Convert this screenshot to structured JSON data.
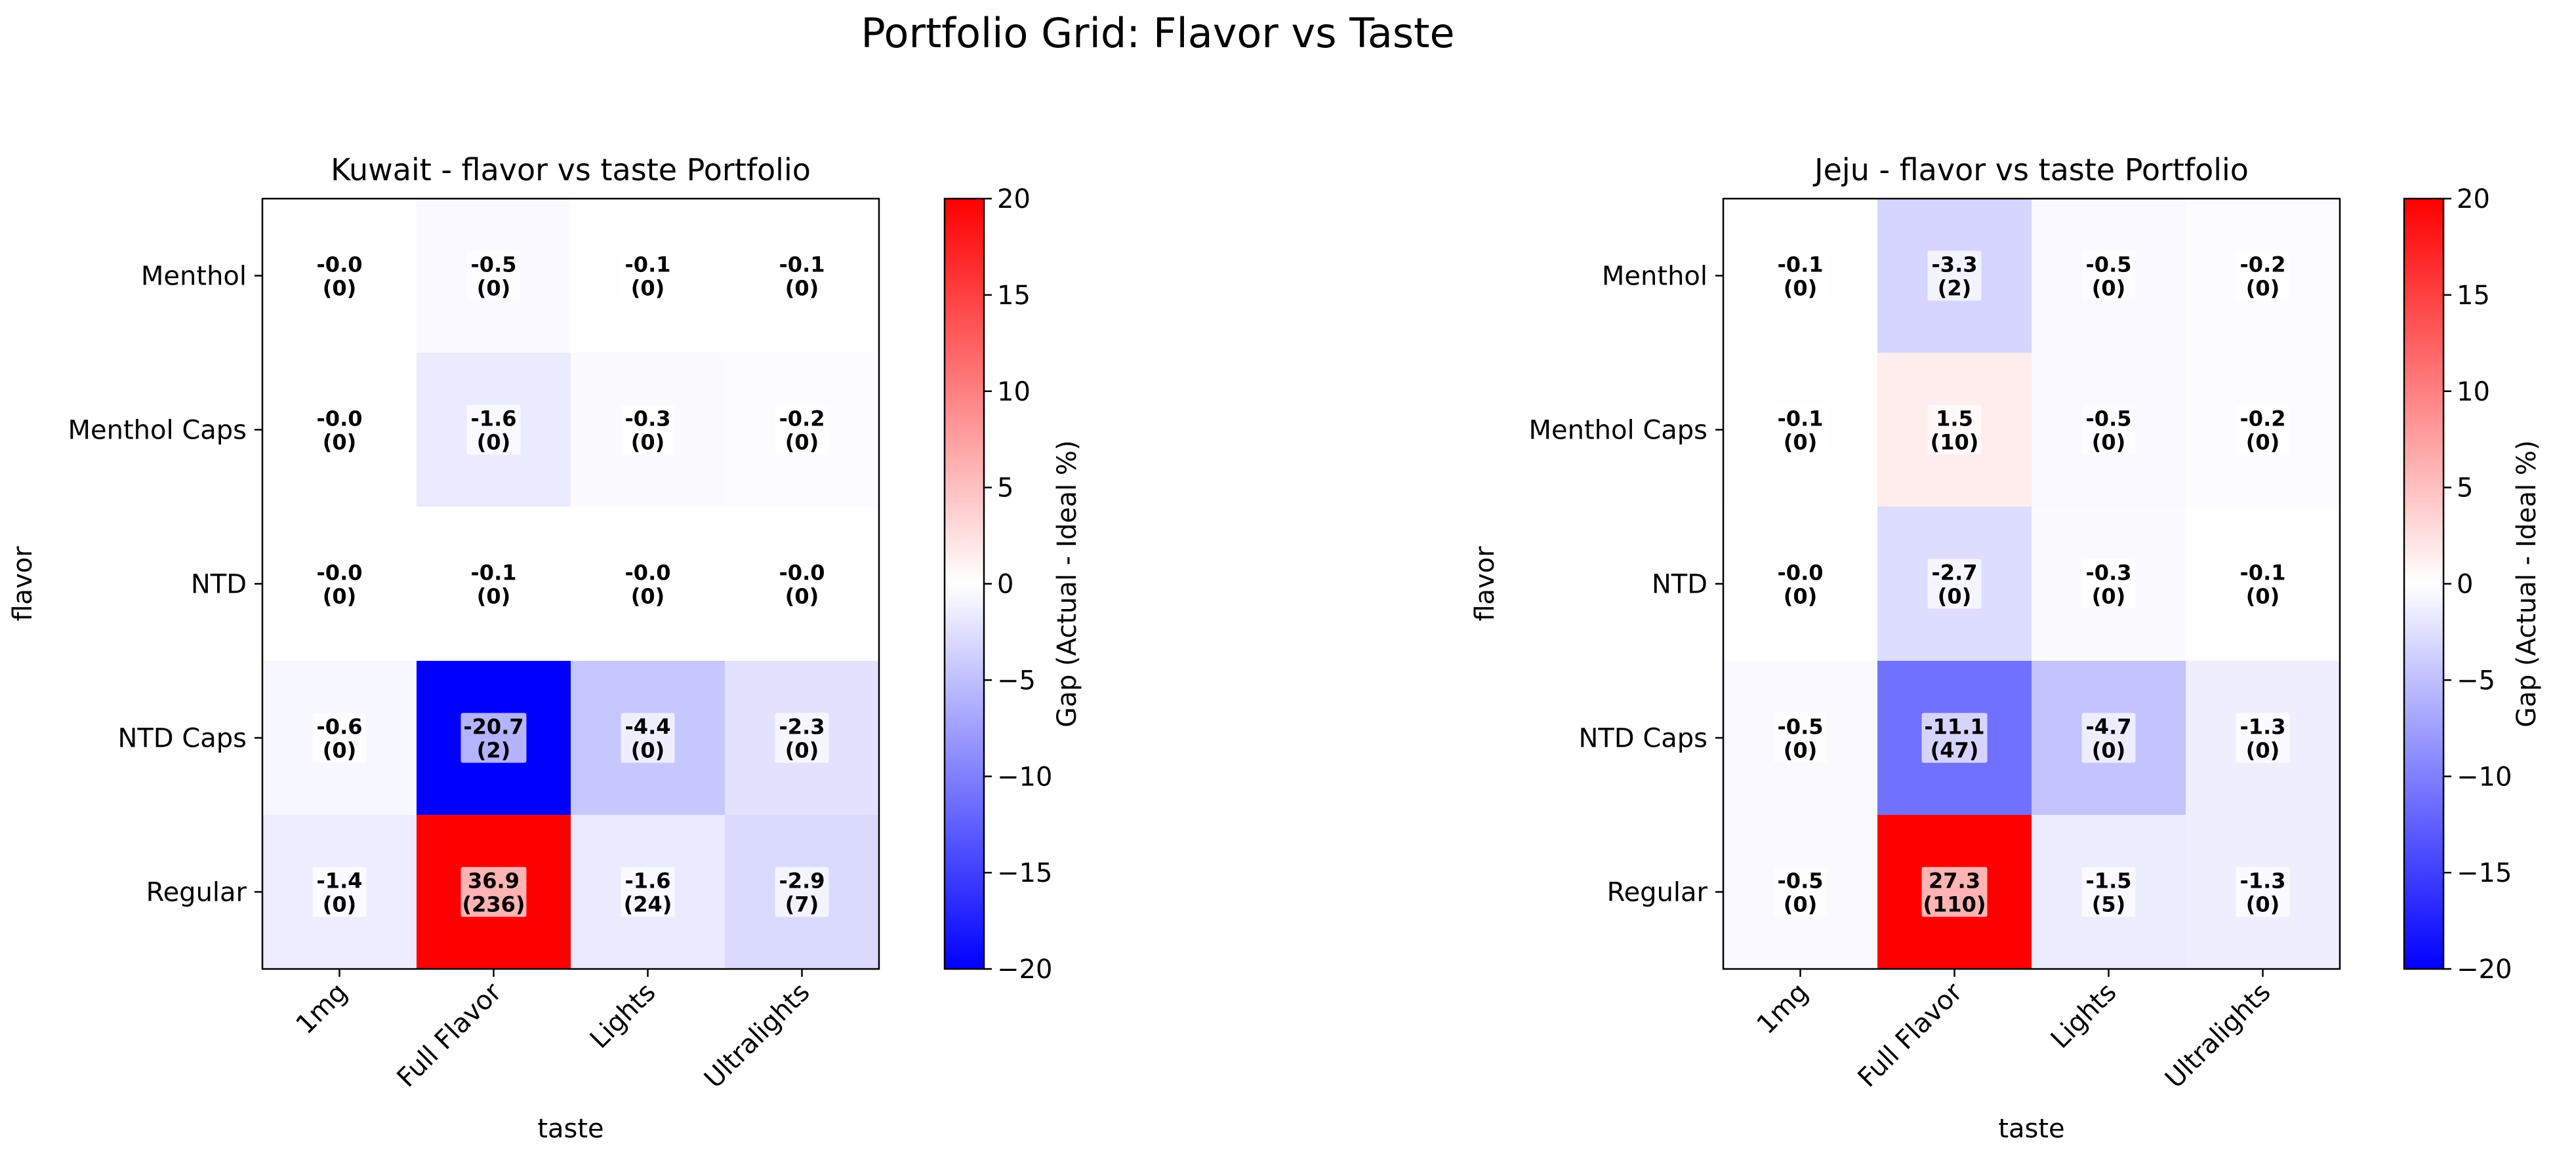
{
  "figure": {
    "title": "Portfolio Grid: Flavor vs Taste"
  },
  "colorbar": {
    "label": "Gap (Actual - Ideal %)",
    "ticks": [
      20,
      15,
      10,
      5,
      0,
      -5,
      -10,
      -15,
      -20
    ]
  },
  "chart_data": [
    {
      "type": "heatmap",
      "title": "Kuwait - flavor vs taste Portfolio",
      "xlabel": "taste",
      "ylabel": "flavor",
      "x_categories": [
        "1mg",
        "Full Flavor",
        "Lights",
        "Ultralights"
      ],
      "y_categories": [
        "Menthol",
        "Menthol Caps",
        "NTD",
        "NTD Caps",
        "Regular"
      ],
      "values": [
        [
          -0.0,
          -0.5,
          -0.1,
          -0.1
        ],
        [
          -0.0,
          -1.6,
          -0.3,
          -0.2
        ],
        [
          -0.0,
          -0.1,
          -0.0,
          -0.0
        ],
        [
          -0.6,
          -20.7,
          -4.4,
          -2.3
        ],
        [
          -1.4,
          36.9,
          -1.6,
          -2.9
        ]
      ],
      "counts": [
        [
          0,
          0,
          0,
          0
        ],
        [
          0,
          0,
          0,
          0
        ],
        [
          0,
          0,
          0,
          0
        ],
        [
          0,
          2,
          0,
          0
        ],
        [
          0,
          236,
          24,
          7
        ]
      ],
      "value_labels": [
        [
          "-0.0",
          "-0.5",
          "-0.1",
          "-0.1"
        ],
        [
          "-0.0",
          "-1.6",
          "-0.3",
          "-0.2"
        ],
        [
          "-0.0",
          "-0.1",
          "-0.0",
          "-0.0"
        ],
        [
          "-0.6",
          "-20.7",
          "-4.4",
          "-2.3"
        ],
        [
          "-1.4",
          "36.9",
          "-1.6",
          "-2.9"
        ]
      ],
      "count_labels": [
        [
          "(0)",
          "(0)",
          "(0)",
          "(0)"
        ],
        [
          "(0)",
          "(0)",
          "(0)",
          "(0)"
        ],
        [
          "(0)",
          "(0)",
          "(0)",
          "(0)"
        ],
        [
          "(0)",
          "(2)",
          "(0)",
          "(0)"
        ],
        [
          "(0)",
          "(236)",
          "(24)",
          "(7)"
        ]
      ],
      "colorscale": {
        "min": -20,
        "max": 20,
        "low": "#0000ff",
        "mid": "#ffffff",
        "high": "#ff0000"
      }
    },
    {
      "type": "heatmap",
      "title": "Jeju - flavor vs taste Portfolio",
      "xlabel": "taste",
      "ylabel": "flavor",
      "x_categories": [
        "1mg",
        "Full Flavor",
        "Lights",
        "Ultralights"
      ],
      "y_categories": [
        "Menthol",
        "Menthol Caps",
        "NTD",
        "NTD Caps",
        "Regular"
      ],
      "values": [
        [
          -0.1,
          -3.3,
          -0.5,
          -0.2
        ],
        [
          -0.1,
          1.5,
          -0.5,
          -0.2
        ],
        [
          -0.0,
          -2.7,
          -0.3,
          -0.1
        ],
        [
          -0.5,
          -11.1,
          -4.7,
          -1.3
        ],
        [
          -0.5,
          27.3,
          -1.5,
          -1.3
        ]
      ],
      "counts": [
        [
          0,
          2,
          0,
          0
        ],
        [
          0,
          10,
          0,
          0
        ],
        [
          0,
          0,
          0,
          0
        ],
        [
          0,
          47,
          0,
          0
        ],
        [
          0,
          110,
          5,
          0
        ]
      ],
      "value_labels": [
        [
          "-0.1",
          "-3.3",
          "-0.5",
          "-0.2"
        ],
        [
          "-0.1",
          "1.5",
          "-0.5",
          "-0.2"
        ],
        [
          "-0.0",
          "-2.7",
          "-0.3",
          "-0.1"
        ],
        [
          "-0.5",
          "-11.1",
          "-4.7",
          "-1.3"
        ],
        [
          "-0.5",
          "27.3",
          "-1.5",
          "-1.3"
        ]
      ],
      "count_labels": [
        [
          "(0)",
          "(2)",
          "(0)",
          "(0)"
        ],
        [
          "(0)",
          "(10)",
          "(0)",
          "(0)"
        ],
        [
          "(0)",
          "(0)",
          "(0)",
          "(0)"
        ],
        [
          "(0)",
          "(47)",
          "(0)",
          "(0)"
        ],
        [
          "(0)",
          "(110)",
          "(5)",
          "(0)"
        ]
      ],
      "colorscale": {
        "min": -20,
        "max": 20,
        "low": "#0000ff",
        "mid": "#ffffff",
        "high": "#ff0000"
      }
    }
  ]
}
